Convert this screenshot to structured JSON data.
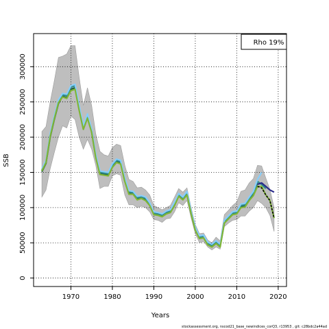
{
  "chart_data": {
    "type": "line",
    "title": "",
    "xlabel": "Years",
    "ylabel": "SSB",
    "xlim": [
      1961,
      2022
    ],
    "ylim": [
      -12000,
      347000
    ],
    "x_ticks": [
      1970,
      1980,
      1990,
      2000,
      2010,
      2020
    ],
    "y_ticks": [
      0,
      50000,
      100000,
      150000,
      200000,
      250000,
      300000
    ],
    "x_tick_labels": [
      "1970",
      "1980",
      "1990",
      "2000",
      "2010",
      "2020"
    ],
    "y_tick_labels": [
      "0",
      "50000",
      "100000",
      "150000",
      "200000",
      "250000",
      "300000"
    ],
    "grid": true,
    "legend_position": "top-right",
    "legend_text": "Rho 19%",
    "footer": "stockassessment.org, nscod21_base_newindices_corQ3, r13953 , git: c28bdc2a44ad",
    "confidence_band": {
      "x": [
        1963,
        1964,
        1965,
        1966,
        1967,
        1968,
        1969,
        1970,
        1971,
        1972,
        1973,
        1974,
        1975,
        1976,
        1977,
        1978,
        1979,
        1980,
        1981,
        1982,
        1983,
        1984,
        1985,
        1986,
        1987,
        1988,
        1989,
        1990,
        1991,
        1992,
        1993,
        1994,
        1995,
        1996,
        1997,
        1998,
        1999,
        2000,
        2001,
        2002,
        2003,
        2004,
        2005,
        2006,
        2007,
        2008,
        2009,
        2010,
        2011,
        2012,
        2013,
        2014,
        2015,
        2016,
        2017,
        2018,
        2019
      ],
      "upper": [
        208000,
        215000,
        250000,
        280000,
        313000,
        315000,
        318000,
        330000,
        330000,
        285000,
        245000,
        270000,
        245000,
        205000,
        180000,
        175000,
        173000,
        185000,
        190000,
        188000,
        160000,
        140000,
        137000,
        128000,
        129000,
        125000,
        118000,
        103000,
        100000,
        97000,
        100000,
        103000,
        115000,
        127000,
        122000,
        128000,
        100000,
        76000,
        63000,
        64000,
        54000,
        50000,
        58000,
        53000,
        90000,
        96000,
        103000,
        108000,
        123000,
        125000,
        135000,
        141000,
        160000,
        159000,
        142000,
        126000,
        100000
      ],
      "lower": [
        115000,
        125000,
        155000,
        178000,
        200000,
        216000,
        213000,
        230000,
        225000,
        200000,
        183000,
        197000,
        183000,
        160000,
        127000,
        130000,
        130000,
        145000,
        148000,
        146000,
        118000,
        104000,
        104000,
        100000,
        102000,
        100000,
        94000,
        83000,
        82000,
        79000,
        84000,
        85000,
        94000,
        107000,
        103000,
        110000,
        85000,
        63000,
        50000,
        52000,
        44000,
        40000,
        44000,
        41000,
        73000,
        78000,
        82000,
        83000,
        88000,
        88000,
        95000,
        100000,
        110000,
        106000,
        100000,
        89000,
        66000
      ]
    },
    "series": [
      {
        "values": [
          151000,
          163000,
          200000,
          225000,
          248000,
          258000,
          256000,
          268000,
          270000,
          240000,
          212000,
          228000,
          208000,
          172000,
          148000,
          147000,
          146000,
          158000,
          165000,
          163000,
          138000,
          120000,
          120000,
          112000,
          114000,
          111000,
          104000,
          91000,
          90000,
          88000,
          92000,
          94000,
          104000,
          117000,
          112000,
          119000,
          92000,
          69000,
          57000,
          58000,
          48000,
          45000,
          50000,
          45000,
          79000,
          85000,
          91000,
          92000,
          101000,
          102000,
          111000,
          119000,
          135000
        ],
        "x": [
          1963,
          1964,
          1965,
          1966,
          1967,
          1968,
          1969,
          1970,
          1971,
          1972,
          1973,
          1974,
          1975,
          1976,
          1977,
          1978,
          1979,
          1980,
          1981,
          1982,
          1983,
          1984,
          1985,
          1986,
          1987,
          1988,
          1989,
          1990,
          1991,
          1992,
          1993,
          1994,
          1995,
          1996,
          1997,
          1998,
          1999,
          2000,
          2001,
          2002,
          2003,
          2004,
          2005,
          2006,
          2007,
          2008,
          2009,
          2010,
          2011,
          2012,
          2013,
          2014,
          2015
        ],
        "color": "#1a5a40"
      },
      {
        "values": [
          153000,
          165000,
          203000,
          228000,
          251000,
          260000,
          259000,
          271000,
          273000,
          243000,
          214000,
          231000,
          210000,
          174000,
          150000,
          149000,
          148000,
          160000,
          167000,
          165000,
          140000,
          122000,
          121000,
          114000,
          115000,
          113000,
          105000,
          92000,
          91000,
          89000,
          93000,
          95000,
          106000,
          118000,
          113000,
          121000,
          93000,
          70000,
          58000,
          59000,
          49000,
          46000,
          51000,
          46000,
          80000,
          86000,
          92000,
          93000,
          103000,
          104000,
          113000,
          121000,
          137000,
          133000,
          127000
        ],
        "x": [
          1963,
          1964,
          1965,
          1966,
          1967,
          1968,
          1969,
          1970,
          1971,
          1972,
          1973,
          1974,
          1975,
          1976,
          1977,
          1978,
          1979,
          1980,
          1981,
          1982,
          1983,
          1984,
          1985,
          1986,
          1987,
          1988,
          1989,
          1990,
          1991,
          1992,
          1993,
          1994,
          1995,
          1996,
          1997,
          1998,
          1999,
          2000,
          2001,
          2002,
          2003,
          2004,
          2005,
          2006,
          2007,
          2008,
          2009,
          2010,
          2011,
          2012,
          2013,
          2014,
          2015,
          2016,
          2017
        ],
        "color": "#2e8b8b"
      },
      {
        "values": [
          155000,
          167000,
          205000,
          230000,
          253000,
          262000,
          261000,
          273000,
          275000,
          245000,
          216000,
          233000,
          212000,
          176000,
          152000,
          151000,
          150000,
          162000,
          169000,
          167000,
          142000,
          124000,
          123000,
          116000,
          117000,
          115000,
          107000,
          94000,
          93000,
          91000,
          95000,
          97000,
          108000,
          120000,
          115000,
          123000,
          95000,
          72000,
          60000,
          61000,
          51000,
          48000,
          53000,
          48000,
          82000,
          88000,
          94000,
          95000,
          105000,
          106000,
          115000,
          123000,
          140000,
          150000
        ],
        "x": [
          1963,
          1964,
          1965,
          1966,
          1967,
          1968,
          1969,
          1970,
          1971,
          1972,
          1973,
          1974,
          1975,
          1976,
          1977,
          1978,
          1979,
          1980,
          1981,
          1982,
          1983,
          1984,
          1985,
          1986,
          1987,
          1988,
          1989,
          1990,
          1991,
          1992,
          1993,
          1994,
          1995,
          1996,
          1997,
          1998,
          1999,
          2000,
          2001,
          2002,
          2003,
          2004,
          2005,
          2006,
          2007,
          2008,
          2009,
          2010,
          2011,
          2012,
          2013,
          2014,
          2015,
          2016
        ],
        "color": "#87cefa"
      },
      {
        "values": [
          133000,
          135000,
          130000,
          125000,
          122000
        ],
        "x": [
          2015,
          2016,
          2017,
          2018,
          2019
        ],
        "color": "#2a2a8a"
      },
      {
        "values": [
          152000,
          164000,
          201000,
          226000,
          249000,
          257000,
          255000,
          266000,
          268000,
          238000,
          211000,
          227000,
          207000,
          171000,
          147000,
          146000,
          145000,
          157000,
          164000,
          162000,
          137000,
          119000,
          119000,
          111000,
          113000,
          110000,
          103000,
          90000,
          89000,
          87000,
          91000,
          93000,
          103000,
          116000,
          111000,
          118000,
          91000,
          68000,
          56000,
          57000,
          47000,
          44000,
          49000,
          44000,
          78000,
          84000,
          90000,
          91000,
          100000,
          101000,
          110000,
          117000,
          130000,
          130000,
          118000,
          110000,
          85000
        ],
        "x": [
          1963,
          1964,
          1965,
          1966,
          1967,
          1968,
          1969,
          1970,
          1971,
          1972,
          1973,
          1974,
          1975,
          1976,
          1977,
          1978,
          1979,
          1980,
          1981,
          1982,
          1983,
          1984,
          1985,
          1986,
          1987,
          1988,
          1989,
          1990,
          1991,
          1992,
          1993,
          1994,
          1995,
          1996,
          1997,
          1998,
          1999,
          2000,
          2001,
          2002,
          2003,
          2004,
          2005,
          2006,
          2007,
          2008,
          2009,
          2010,
          2011,
          2012,
          2013,
          2014,
          2015,
          2016,
          2017,
          2018,
          2019
        ],
        "color": "#7fb536"
      },
      {
        "values": [
          130000,
          128000,
          118000,
          110000,
          85000
        ],
        "x": [
          2015,
          2016,
          2017,
          2018,
          2019
        ],
        "color": "#000000",
        "dashed": true
      }
    ]
  }
}
